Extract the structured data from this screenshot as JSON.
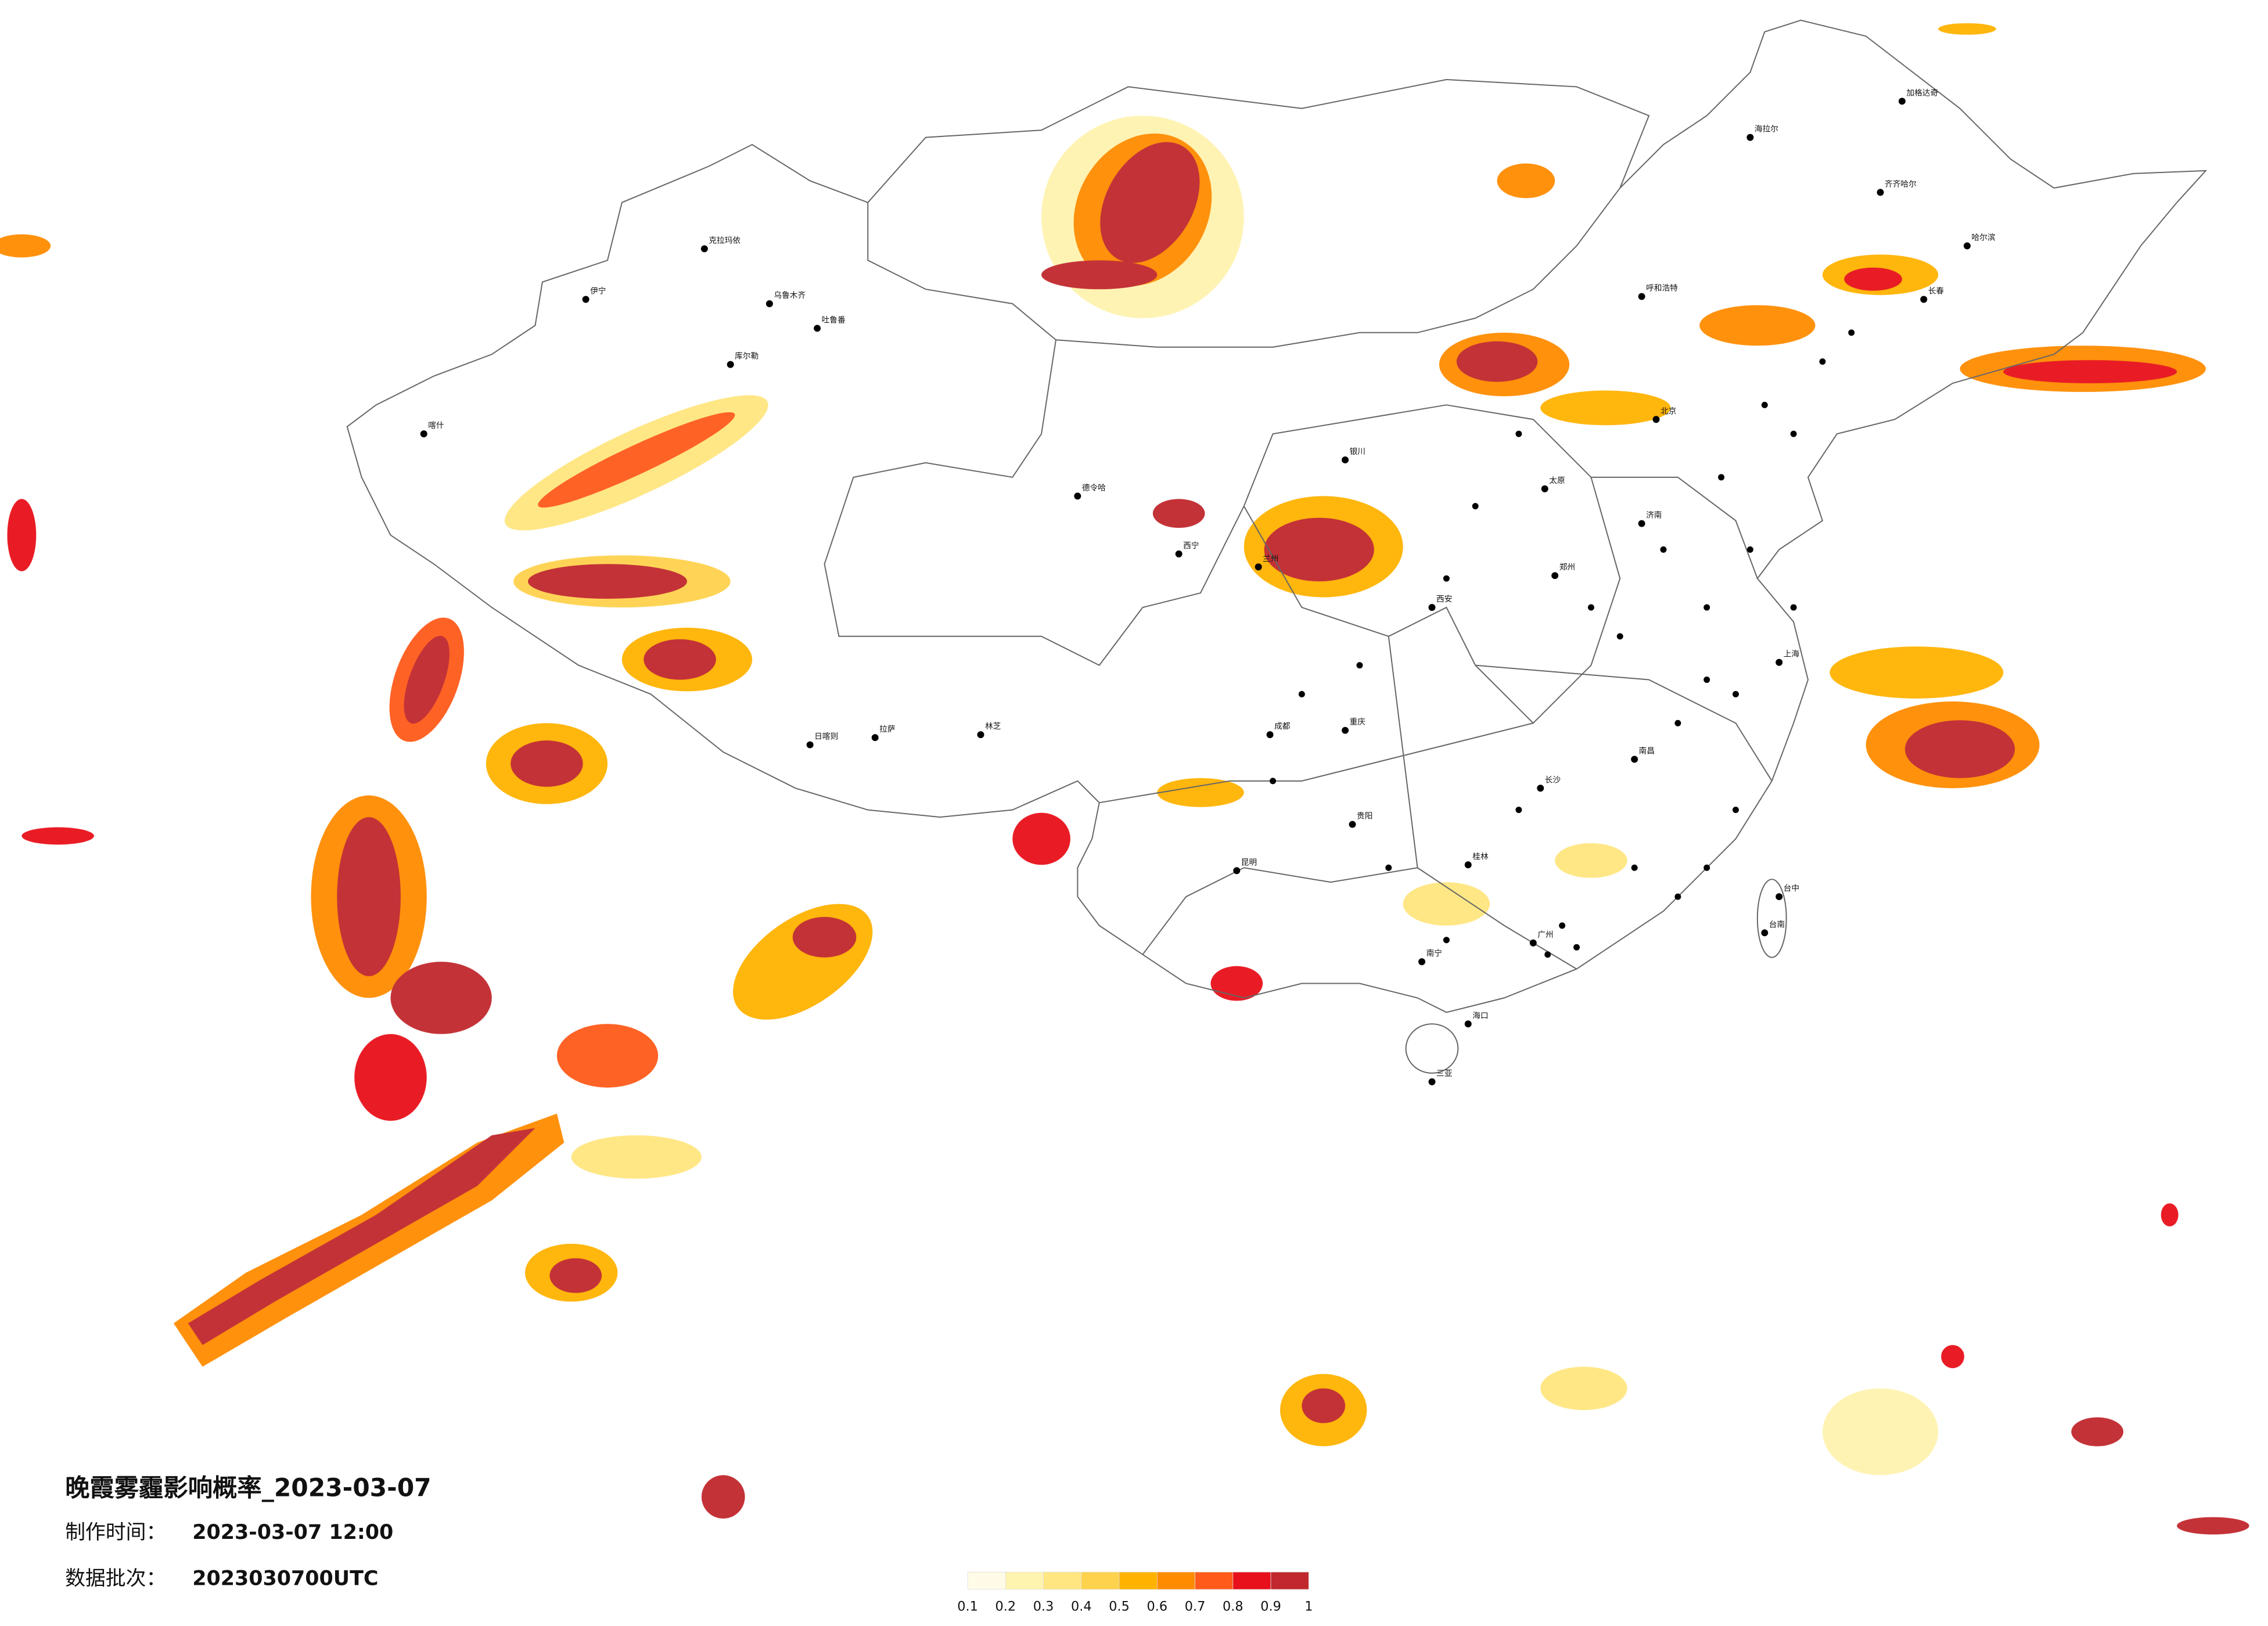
{
  "title": "晚霞雾霾影响概率_2023-03-07",
  "info": [
    {
      "label": "制作时间：",
      "value": "2023-03-07 12:00"
    },
    {
      "label": "数据批次：",
      "value": "2023030700UTC"
    }
  ],
  "legend": {
    "colors": [
      "#fffbe6",
      "#fff3b0",
      "#ffe680",
      "#ffd24d",
      "#ffb300",
      "#ff8c00",
      "#ff5a1a",
      "#e8101a",
      "#c0282d"
    ],
    "ticks": [
      0.1,
      0.2,
      0.3,
      0.4,
      0.5,
      0.6,
      0.7,
      0.8,
      0.9,
      1
    ]
  },
  "cities": [
    "克拉玛依",
    "乌鲁木齐",
    "伊宁",
    "库尔勒",
    "吐鲁番",
    "喀什",
    "德令哈",
    "日喀则",
    "拉萨",
    "林芝",
    "西宁",
    "兰州",
    "银川",
    "呼和浩特",
    "北京",
    "太原",
    "郑州",
    "西安",
    "成都",
    "重庆",
    "贵阳",
    "昆明",
    "南宁",
    "桂林",
    "广州",
    "长沙",
    "南昌",
    "上海",
    "济南",
    "哈尔滨",
    "长春",
    "齐齐哈尔",
    "海拉尔",
    "加格达奇",
    "海口",
    "三亚",
    "台中",
    "台南"
  ]
}
